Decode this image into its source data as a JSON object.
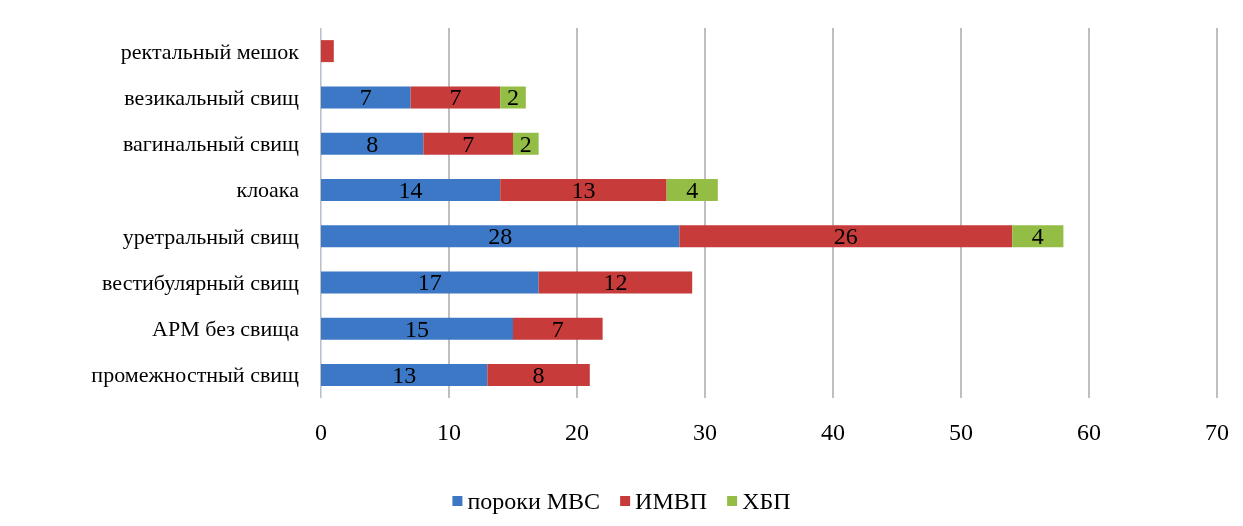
{
  "chart_data": {
    "type": "bar",
    "orientation": "horizontal",
    "stacked": true,
    "categories": [
      "ректальный мешок",
      "везикальный свищ",
      "вагинальный свищ",
      "клоака",
      "уретральный свищ",
      "вестибулярный свищ",
      "АРМ без свища",
      "промежностный свищ"
    ],
    "series": [
      {
        "name": "пороки МВС",
        "color": "#3c78c6",
        "values": [
          null,
          7,
          8,
          14,
          28,
          17,
          15,
          13
        ],
        "value_labels": [
          null,
          "7",
          "8",
          "14",
          "28",
          "17",
          "15",
          "13"
        ]
      },
      {
        "name": "ИМВП",
        "color": "#c73b3a",
        "values": [
          1,
          7,
          7,
          13,
          26,
          12,
          7,
          8
        ],
        "value_labels": [
          null,
          "7",
          "7",
          "13",
          "26",
          "12",
          "7",
          "8"
        ]
      },
      {
        "name": "ХБП",
        "color": "#93bd45",
        "values": [
          null,
          2,
          2,
          4,
          4,
          null,
          null,
          null
        ],
        "value_labels": [
          null,
          "2",
          "2",
          "4",
          "4",
          null,
          null,
          null
        ]
      }
    ],
    "xlim": [
      0,
      70
    ],
    "xticks": [
      0,
      10,
      20,
      30,
      40,
      50,
      60,
      70
    ],
    "grid": "x",
    "legend": "bottom"
  }
}
